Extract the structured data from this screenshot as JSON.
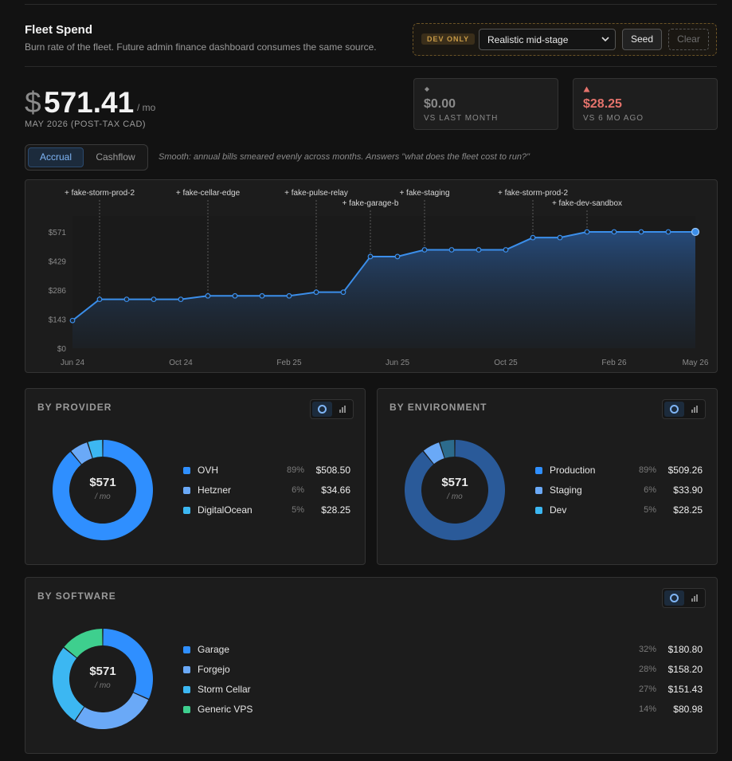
{
  "header": {
    "title": "Fleet Spend",
    "subtitle": "Burn rate of the fleet. Future admin finance dashboard consumes the same source."
  },
  "dev_panel": {
    "badge": "DEV ONLY",
    "scenario_selected": "Realistic mid-stage",
    "seed_label": "Seed",
    "clear_label": "Clear"
  },
  "summary": {
    "currency_symbol": "$",
    "amount": "571.41",
    "per_label": "/ mo",
    "period": "MAY 2026 (POST-TAX CAD)"
  },
  "stats": [
    {
      "icon": "diamond-icon",
      "value": "$0.00",
      "label": "VS LAST MONTH",
      "color": "#8a8a8a"
    },
    {
      "icon": "triangle-up-icon",
      "value": "$28.25",
      "label": "VS 6 MO AGO",
      "color": "#e5736c"
    }
  ],
  "mode": {
    "tabs": [
      "Accrual",
      "Cashflow"
    ],
    "active": "Accrual",
    "description": "Smooth: annual bills smeared evenly across months. Answers \"what does the fleet cost to run?\""
  },
  "chart_data": {
    "type": "area",
    "x": [
      "Jun 24",
      "Jul 24",
      "Aug 24",
      "Sep 24",
      "Oct 24",
      "Nov 24",
      "Dec 24",
      "Jan 25",
      "Feb 25",
      "Mar 25",
      "Apr 25",
      "May 25",
      "Jun 25",
      "Jul 25",
      "Aug 25",
      "Sep 25",
      "Oct 25",
      "Nov 25",
      "Dec 25",
      "Jan 26",
      "Feb 26",
      "Mar 26",
      "Apr 26",
      "May 26"
    ],
    "x_tick_labels": [
      "Jun 24",
      "Oct 24",
      "Feb 25",
      "Jun 25",
      "Oct 25",
      "Feb 26",
      "May 26"
    ],
    "y_tick_labels": [
      "$0",
      "$143",
      "$286",
      "$429",
      "$571"
    ],
    "y_ticks": [
      0,
      143,
      286,
      429,
      571
    ],
    "ylim": [
      0,
      571
    ],
    "values": [
      136,
      240,
      240,
      240,
      240,
      257,
      257,
      257,
      257,
      275,
      275,
      450,
      450,
      483,
      483,
      483,
      483,
      543,
      543,
      571,
      571,
      571,
      571,
      571
    ],
    "series_color": "#3b8eea",
    "grid": false,
    "annotations": [
      {
        "label": "+ fake-storm-prod-2",
        "x_index": 1,
        "row": 0
      },
      {
        "label": "+ fake-cellar-edge",
        "x_index": 5,
        "row": 0
      },
      {
        "label": "+ fake-pulse-relay",
        "x_index": 9,
        "row": 0
      },
      {
        "label": "+ fake-garage-b",
        "x_index": 11,
        "row": 1
      },
      {
        "label": "+ fake-staging",
        "x_index": 13,
        "row": 0
      },
      {
        "label": "+ fake-storm-prod-2",
        "x_index": 17,
        "row": 0
      },
      {
        "label": "+ fake-dev-sandbox",
        "x_index": 19,
        "row": 1
      }
    ]
  },
  "by_provider": {
    "title": "BY PROVIDER",
    "center_value": "$571",
    "center_unit": "/ mo",
    "items": [
      {
        "name": "OVH",
        "pct": "89%",
        "amount": "$508.50",
        "value": 508.5,
        "color": "#2f8fff"
      },
      {
        "name": "Hetzner",
        "pct": "6%",
        "amount": "$34.66",
        "value": 34.66,
        "color": "#6aa9f7"
      },
      {
        "name": "DigitalOcean",
        "pct": "5%",
        "amount": "$28.25",
        "value": 28.25,
        "color": "#3cb7f2"
      }
    ]
  },
  "by_environment": {
    "title": "BY ENVIRONMENT",
    "center_value": "$571",
    "center_unit": "/ mo",
    "items": [
      {
        "name": "Production",
        "pct": "89%",
        "amount": "$509.26",
        "value": 509.26,
        "color": "#2f8fff",
        "ring_color": "#2a5a99"
      },
      {
        "name": "Staging",
        "pct": "6%",
        "amount": "$33.90",
        "value": 33.9,
        "color": "#6aa9f7",
        "ring_color": "#6aa9f7"
      },
      {
        "name": "Dev",
        "pct": "5%",
        "amount": "$28.25",
        "value": 28.25,
        "color": "#3cb7f2",
        "ring_color": "#2c6b8c"
      }
    ]
  },
  "by_software": {
    "title": "BY SOFTWARE",
    "center_value": "$571",
    "center_unit": "/ mo",
    "items": [
      {
        "name": "Garage",
        "pct": "32%",
        "amount": "$180.80",
        "value": 180.8,
        "color": "#2f8fff"
      },
      {
        "name": "Forgejo",
        "pct": "28%",
        "amount": "$158.20",
        "value": 158.2,
        "color": "#6aa9f7"
      },
      {
        "name": "Storm Cellar",
        "pct": "27%",
        "amount": "$151.43",
        "value": 151.43,
        "color": "#3cb7f2"
      },
      {
        "name": "Generic VPS",
        "pct": "14%",
        "amount": "$80.98",
        "value": 80.98,
        "color": "#3ecf8e"
      }
    ]
  }
}
